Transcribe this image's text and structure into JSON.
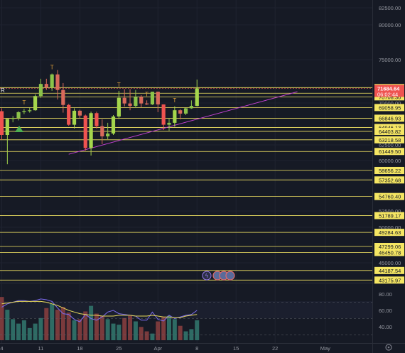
{
  "colors": {
    "up": "#8bc34a",
    "up_bright": "#a5d64c",
    "down": "#ef5350",
    "down_soft": "#d9695b",
    "level": "#f5e663",
    "trendline": "#c040d0",
    "vol_up": "#2e6b64",
    "vol_down": "#7a3a3c",
    "rsi": "#7c6cf0",
    "rsi_ma": "#e6d85a",
    "current": "#ef5350"
  },
  "chart_data": {
    "type": "candlestick",
    "yaxis_labels": [
      "82500.00",
      "80000.00",
      "75000.00",
      "70000.00",
      "65000.00",
      "62500.00",
      "60000.00",
      "57500.00",
      "52500.00",
      "50000.00",
      "45000.00"
    ],
    "yaxis_values": [
      82500,
      80000,
      75000,
      70000,
      65000,
      62500,
      60000,
      57500,
      52500,
      50000,
      45000
    ],
    "xaxis_labels": [
      "4",
      "11",
      "18",
      "25",
      "Apr",
      "8",
      "15",
      "22",
      "May"
    ],
    "price_levels": [
      "71778.93",
      "71126.11",
      "70708.30",
      "69058.95",
      "66846.93",
      "64946.13",
      "64403.82",
      "63218.58",
      "61449.50",
      "58656.22",
      "57352.68",
      "54760.40",
      "51789.17",
      "49284.63",
      "47299.06",
      "46450.78",
      "44187.54",
      "43175.97"
    ],
    "current_price": "71684.64",
    "countdown": "06:02:44",
    "candles": [
      {
        "d": "2024-03-04",
        "o": 68300,
        "h": 68900,
        "l": 63200,
        "c": 63900
      },
      {
        "d": "2024-03-05",
        "o": 63900,
        "h": 66700,
        "l": 59500,
        "c": 66700
      },
      {
        "d": "2024-03-06",
        "o": 66700,
        "h": 67300,
        "l": 66000,
        "c": 66900
      },
      {
        "d": "2024-03-07",
        "o": 66900,
        "h": 68300,
        "l": 66400,
        "c": 68100
      },
      {
        "d": "2024-03-08",
        "o": 68100,
        "h": 68800,
        "l": 67700,
        "c": 68300
      },
      {
        "d": "2024-03-09",
        "o": 68300,
        "h": 69000,
        "l": 68000,
        "c": 68500
      },
      {
        "d": "2024-03-10",
        "o": 68500,
        "h": 71000,
        "l": 68400,
        "c": 70800
      },
      {
        "d": "2024-03-11",
        "o": 70800,
        "h": 72800,
        "l": 70600,
        "c": 72200
      },
      {
        "d": "2024-03-12",
        "o": 72200,
        "h": 72800,
        "l": 71500,
        "c": 71800
      },
      {
        "d": "2024-03-13",
        "o": 71800,
        "h": 73400,
        "l": 71400,
        "c": 73300
      },
      {
        "d": "2024-03-14",
        "o": 73300,
        "h": 73800,
        "l": 70400,
        "c": 71500
      },
      {
        "d": "2024-03-15",
        "o": 71500,
        "h": 72300,
        "l": 68000,
        "c": 69600
      },
      {
        "d": "2024-03-16",
        "o": 69600,
        "h": 69800,
        "l": 65300,
        "c": 65500
      },
      {
        "d": "2024-03-17",
        "o": 65500,
        "h": 68900,
        "l": 64800,
        "c": 68400
      },
      {
        "d": "2024-03-18",
        "o": 68400,
        "h": 68600,
        "l": 66900,
        "c": 67400
      },
      {
        "d": "2024-03-19",
        "o": 67400,
        "h": 67600,
        "l": 61600,
        "c": 62000
      },
      {
        "d": "2024-03-20",
        "o": 62000,
        "h": 68200,
        "l": 60800,
        "c": 67900
      },
      {
        "d": "2024-03-21",
        "o": 67900,
        "h": 68200,
        "l": 64800,
        "c": 65200
      },
      {
        "d": "2024-03-22",
        "o": 65200,
        "h": 66600,
        "l": 62600,
        "c": 63700
      },
      {
        "d": "2024-03-23",
        "o": 63700,
        "h": 65900,
        "l": 63300,
        "c": 64100
      },
      {
        "d": "2024-03-24",
        "o": 64100,
        "h": 67500,
        "l": 63900,
        "c": 67200
      },
      {
        "d": "2024-03-25",
        "o": 67200,
        "h": 71400,
        "l": 66700,
        "c": 70600
      },
      {
        "d": "2024-03-26",
        "o": 70600,
        "h": 71600,
        "l": 69300,
        "c": 69900
      },
      {
        "d": "2024-03-27",
        "o": 69900,
        "h": 71600,
        "l": 68500,
        "c": 69400
      },
      {
        "d": "2024-03-28",
        "o": 69400,
        "h": 71500,
        "l": 69000,
        "c": 70700
      },
      {
        "d": "2024-03-29",
        "o": 70700,
        "h": 70900,
        "l": 69100,
        "c": 69900
      },
      {
        "d": "2024-03-30",
        "o": 69900,
        "h": 70300,
        "l": 69600,
        "c": 69700
      },
      {
        "d": "2024-03-31",
        "o": 69700,
        "h": 71300,
        "l": 69600,
        "c": 71300
      },
      {
        "d": "2024-04-01",
        "o": 71300,
        "h": 71300,
        "l": 68100,
        "c": 69700
      },
      {
        "d": "2024-04-02",
        "o": 69700,
        "h": 69700,
        "l": 64600,
        "c": 65500
      },
      {
        "d": "2024-04-03",
        "o": 65500,
        "h": 66900,
        "l": 64500,
        "c": 65900
      },
      {
        "d": "2024-04-04",
        "o": 65900,
        "h": 69300,
        "l": 65100,
        "c": 68500
      },
      {
        "d": "2024-04-05",
        "o": 68500,
        "h": 68700,
        "l": 66600,
        "c": 67800
      },
      {
        "d": "2024-04-06",
        "o": 67800,
        "h": 69000,
        "l": 67500,
        "c": 68900
      },
      {
        "d": "2024-04-07",
        "o": 68900,
        "h": 70300,
        "l": 68800,
        "c": 69400
      },
      {
        "d": "2024-04-08",
        "o": 69400,
        "h": 72700,
        "l": 69300,
        "c": 71700
      }
    ],
    "volume": [
      78,
      55,
      38,
      30,
      36,
      22,
      30,
      40,
      58,
      66,
      55,
      60,
      50,
      36,
      38,
      52,
      62,
      48,
      44,
      38,
      30,
      28,
      40,
      44,
      34,
      24,
      16,
      12,
      34,
      42,
      44,
      38,
      26,
      16,
      20,
      36
    ],
    "rsi": [
      64,
      68,
      70,
      72,
      72,
      71,
      72,
      74,
      73,
      71,
      63,
      56,
      55,
      49,
      46,
      55,
      50,
      48,
      52,
      58,
      60,
      56,
      55,
      54,
      53,
      48,
      48,
      58,
      49,
      47,
      54,
      50,
      52,
      54,
      55,
      60
    ],
    "rsi_ma": [
      68,
      69,
      70,
      71,
      71,
      71,
      71,
      71,
      70,
      68,
      66,
      63,
      60,
      58,
      56,
      55,
      54,
      54,
      53,
      53,
      53,
      54,
      54,
      54,
      53,
      53,
      53,
      54,
      53,
      52,
      52,
      51,
      51,
      53,
      54,
      55
    ],
    "rsi_scale_labels": [
      "80.00",
      "60.00",
      "40.00"
    ],
    "signal_marks": [
      "T",
      "T",
      "T",
      "T",
      "T"
    ],
    "partial_label": "R"
  }
}
